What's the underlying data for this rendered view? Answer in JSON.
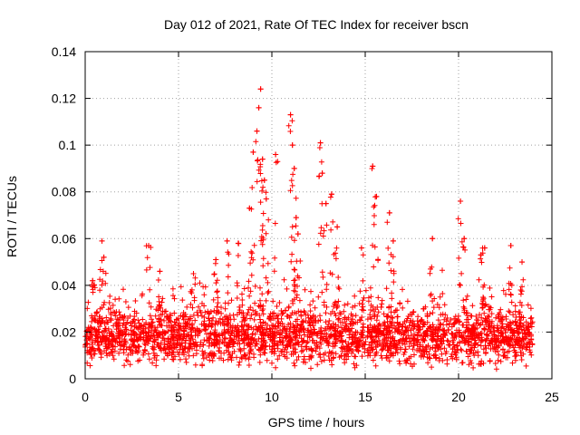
{
  "chart_data": {
    "type": "scatter",
    "title": "Day 012 of 2021, Rate Of TEC Index for receiver bscn",
    "xlabel": "GPS time / hours",
    "ylabel": "ROTI / TECUs",
    "xlim": [
      0,
      25
    ],
    "ylim": [
      0,
      0.14
    ],
    "x_ticks": [
      0,
      5,
      10,
      15,
      20,
      25
    ],
    "y_ticks": [
      0,
      0.02,
      0.04,
      0.06,
      0.08,
      0.1,
      0.12,
      0.14
    ],
    "x_tick_labels": [
      "0",
      "5",
      "10",
      "15",
      "20",
      "25"
    ],
    "y_tick_labels": [
      "0",
      "0.02",
      "0.04",
      "0.06",
      "0.08",
      "0.1",
      "0.12",
      "0.14"
    ],
    "grid": true,
    "marker": "plus",
    "color": "#ff0000",
    "series_note": "Dense scatter from ~0 to 24 h; bulk ~0.006-0.035 TECU/s; outliers listed below",
    "bulk": {
      "x_range": [
        0,
        24
      ],
      "y_range": [
        0.005,
        0.035
      ],
      "median": 0.018
    },
    "peaks": [
      [
        0.4,
        0.042
      ],
      [
        0.9,
        0.059
      ],
      [
        1.0,
        0.052
      ],
      [
        3.4,
        0.057
      ],
      [
        4.0,
        0.046
      ],
      [
        5.8,
        0.045
      ],
      [
        7.0,
        0.051
      ],
      [
        7.6,
        0.059
      ],
      [
        8.2,
        0.058
      ],
      [
        8.8,
        0.073
      ],
      [
        9.0,
        0.097
      ],
      [
        9.2,
        0.106
      ],
      [
        9.3,
        0.116
      ],
      [
        9.4,
        0.124
      ],
      [
        9.5,
        0.094
      ],
      [
        9.6,
        0.085
      ],
      [
        9.7,
        0.077
      ],
      [
        10.2,
        0.096
      ],
      [
        11.0,
        0.113
      ],
      [
        11.1,
        0.1
      ],
      [
        11.2,
        0.09
      ],
      [
        11.3,
        0.069
      ],
      [
        11.4,
        0.062
      ],
      [
        12.6,
        0.101
      ],
      [
        12.7,
        0.088
      ],
      [
        12.9,
        0.075
      ],
      [
        13.2,
        0.079
      ],
      [
        13.5,
        0.065
      ],
      [
        14.8,
        0.056
      ],
      [
        15.4,
        0.091
      ],
      [
        15.6,
        0.078
      ],
      [
        16.3,
        0.071
      ],
      [
        16.5,
        0.059
      ],
      [
        18.6,
        0.06
      ],
      [
        20.1,
        0.076
      ],
      [
        20.3,
        0.06
      ],
      [
        21.2,
        0.053
      ],
      [
        21.4,
        0.056
      ],
      [
        22.8,
        0.057
      ],
      [
        23.4,
        0.05
      ]
    ]
  }
}
